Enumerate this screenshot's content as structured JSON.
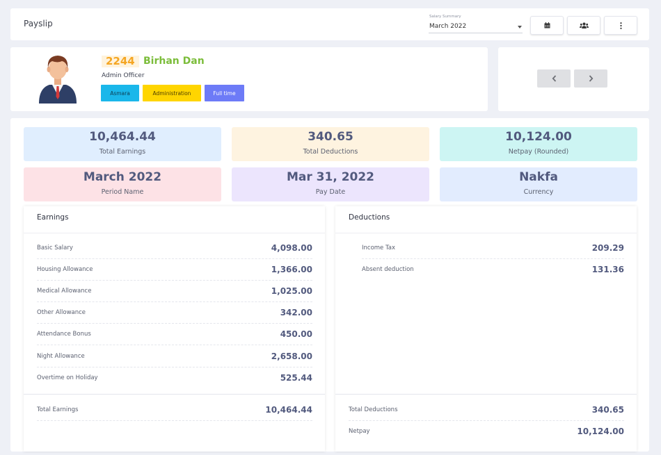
{
  "header": {
    "title": "Payslip",
    "select_label": "Salary Summary",
    "select_value": "March 2022",
    "icons": [
      "calendar-icon",
      "users-icon",
      "more-vertical-icon"
    ]
  },
  "employee": {
    "id": "2244",
    "name": "Birhan Dan",
    "role": "Admin Officer",
    "tags": [
      "Asmara",
      "Administration",
      "Full time"
    ]
  },
  "summary": [
    {
      "value": "10,464.44",
      "label": "Total Earnings",
      "color": "#e0eefe"
    },
    {
      "value": "340.65",
      "label": "Total Deductions",
      "color": "#fef3e0"
    },
    {
      "value": "10,124.00",
      "label": "Netpay (Rounded)",
      "color": "#cdf5f3"
    },
    {
      "value": "March 2022",
      "label": "Period Name",
      "color": "#fde2e6"
    },
    {
      "value": "Mar 31, 2022",
      "label": "Pay Date",
      "color": "#ece5fd"
    },
    {
      "value": "Nakfa",
      "label": "Currency",
      "color": "#e2ecfe"
    }
  ],
  "earnings": {
    "title": "Earnings",
    "items": [
      {
        "label": "Basic Salary",
        "value": "4,098.00"
      },
      {
        "label": "Housing Allowance",
        "value": "1,366.00"
      },
      {
        "label": "Medical Allowance",
        "value": "1,025.00"
      },
      {
        "label": "Other Allowance",
        "value": "342.00"
      },
      {
        "label": "Attendance Bonus",
        "value": "450.00"
      },
      {
        "label": "Night Allowance",
        "value": "2,658.00"
      },
      {
        "label": "Overtime on Holiday",
        "value": "525.44"
      }
    ],
    "total_label": "Total Earnings",
    "total_value": "10,464.44"
  },
  "deductions": {
    "title": "Deductions",
    "items": [
      {
        "label": "Income Tax",
        "value": "209.29"
      },
      {
        "label": "Absent deduction",
        "value": "131.36"
      }
    ],
    "total_label": "Total Deductions",
    "total_value": "340.65",
    "net_label": "Netpay",
    "net_value": "10,124.00"
  }
}
